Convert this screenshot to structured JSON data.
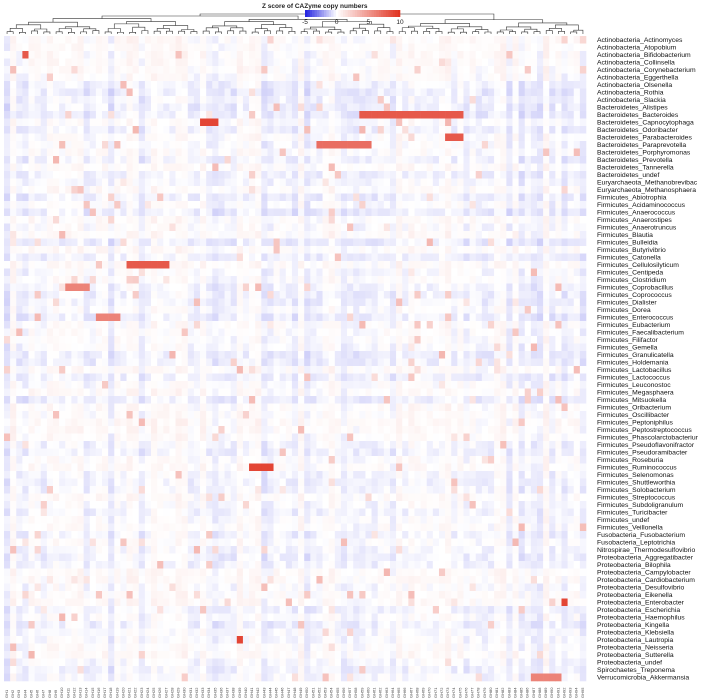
{
  "chart_data": {
    "type": "heatmap",
    "legend": {
      "title": "Z score of CAZyme copy numbers",
      "ticks": [
        "-5",
        "0",
        "5",
        "10"
      ],
      "range": [
        -5,
        10
      ],
      "colors": {
        "low": "#1f1fe0",
        "mid": "#ffffff",
        "high": "#e0301e"
      }
    },
    "rows": [
      "Actinobacteria_Actinomyces",
      "Actinobacteria_Atopobium",
      "Actinobacteria_Bifidobacterium",
      "Actinobacteria_Collinsella",
      "Actinobacteria_Corynebacterium",
      "Actinobacteria_Eggerthella",
      "Actinobacteria_Olsenella",
      "Actinobacteria_Rothia",
      "Actinobacteria_Slackia",
      "Bacteroidetes_Alistipes",
      "Bacteroidetes_Bacteroides",
      "Bacteroidetes_Capnocytophaga",
      "Bacteroidetes_Odoribacter",
      "Bacteroidetes_Parabacteroides",
      "Bacteroidetes_Paraprevotella",
      "Bacteroidetes_Porphyromonas",
      "Bacteroidetes_Prevotella",
      "Bacteroidetes_Tannerella",
      "Bacteroidetes_undef",
      "Euryarchaeota_Methanobrevibac",
      "Euryarchaeota_Methanosphaera",
      "Firmicutes_Abiotrophia",
      "Firmicutes_Acidaminococcus",
      "Firmicutes_Anaerococcus",
      "Firmicutes_Anaerostipes",
      "Firmicutes_Anaerotruncus",
      "Firmicutes_Blautia",
      "Firmicutes_Bulleidia",
      "Firmicutes_Butyrivibrio",
      "Firmicutes_Catonella",
      "Firmicutes_Cellulosilyticum",
      "Firmicutes_Centipeda",
      "Firmicutes_Clostridium",
      "Firmicutes_Coprobacillus",
      "Firmicutes_Coprococcus",
      "Firmicutes_Dialister",
      "Firmicutes_Dorea",
      "Firmicutes_Enterococcus",
      "Firmicutes_Eubacterium",
      "Firmicutes_Faecalibacterium",
      "Firmicutes_Filifactor",
      "Firmicutes_Gemella",
      "Firmicutes_Granulicatella",
      "Firmicutes_Holdemania",
      "Firmicutes_Lactobacillus",
      "Firmicutes_Lactococcus",
      "Firmicutes_Leuconostoc",
      "Firmicutes_Megasphaera",
      "Firmicutes_Mitsuokella",
      "Firmicutes_Oribacterium",
      "Firmicutes_Oscillibacter",
      "Firmicutes_Peptoniphilus",
      "Firmicutes_Peptostreptococcus",
      "Firmicutes_Phascolarctobacteriur",
      "Firmicutes_Pseudoflavonifractor",
      "Firmicutes_Pseudoramibacter",
      "Firmicutes_Roseburia",
      "Firmicutes_Ruminococcus",
      "Firmicutes_Selenomonas",
      "Firmicutes_Shuttleworthia",
      "Firmicutes_Solobacterium",
      "Firmicutes_Streptococcus",
      "Firmicutes_Subdoligranulum",
      "Firmicutes_Turicibacter",
      "Firmicutes_undef",
      "Firmicutes_Veillonella",
      "Fusobacteria_Fusobacterium",
      "Fusobacteria_Leptotrichia",
      "Nitrospirae_Thermodesulfovibrio",
      "Proteobacteria_Aggregatibacter",
      "Proteobacteria_Bilophila",
      "Proteobacteria_Campylobacter",
      "Proteobacteria_Cardiobacterium",
      "Proteobacteria_Desulfovibrio",
      "Proteobacteria_Eikenella",
      "Proteobacteria_Enterobacter",
      "Proteobacteria_Escherichia",
      "Proteobacteria_Haemophilus",
      "Proteobacteria_Kingella",
      "Proteobacteria_Klebsiella",
      "Proteobacteria_Lautropia",
      "Proteobacteria_Neisseria",
      "Proteobacteria_Sutterella",
      "Proteobacteria_undef",
      "Spirochaetes_Treponema",
      "Verrucomicrobia_Akkermansia"
    ],
    "columns_count": 95,
    "hot_cells": [
      {
        "row": "Actinobacteria_Bifidobacterium",
        "cols": [
          3
        ],
        "z": 8
      },
      {
        "row": "Bacteroidetes_Bacteroides",
        "cols": [
          58,
          59,
          60,
          61,
          62,
          63,
          64,
          65,
          66,
          67,
          68,
          69,
          70,
          71,
          72,
          73,
          74
        ],
        "z": 8
      },
      {
        "row": "Bacteroidetes_Capnocytophaga",
        "cols": [
          32,
          33,
          34
        ],
        "z": 9
      },
      {
        "row": "Bacteroidetes_Parabacteroides",
        "cols": [
          72,
          73,
          74
        ],
        "z": 8
      },
      {
        "row": "Bacteroidetes_Paraprevotella",
        "cols": [
          51,
          52,
          53,
          54,
          55,
          56,
          57,
          58,
          59
        ],
        "z": 7
      },
      {
        "row": "Firmicutes_Cellulosilyticum",
        "cols": [
          20,
          21,
          22,
          23,
          24,
          25,
          26
        ],
        "z": 8
      },
      {
        "row": "Firmicutes_Coprobacillus",
        "cols": [
          10,
          11,
          12,
          13
        ],
        "z": 6
      },
      {
        "row": "Firmicutes_Enterococcus",
        "cols": [
          15,
          16,
          17,
          18
        ],
        "z": 6
      },
      {
        "row": "Firmicutes_Ruminococcus",
        "cols": [
          40,
          41,
          42,
          43
        ],
        "z": 9
      },
      {
        "row": "Proteobacteria_Enterobacter",
        "cols": [
          91
        ],
        "z": 9
      },
      {
        "row": "Proteobacteria_Lautropia",
        "cols": [
          38
        ],
        "z": 9
      },
      {
        "row": "Verrucomicrobia_Akkermansia",
        "cols": [
          86,
          87,
          88,
          89,
          90
        ],
        "z": 6
      }
    ]
  }
}
